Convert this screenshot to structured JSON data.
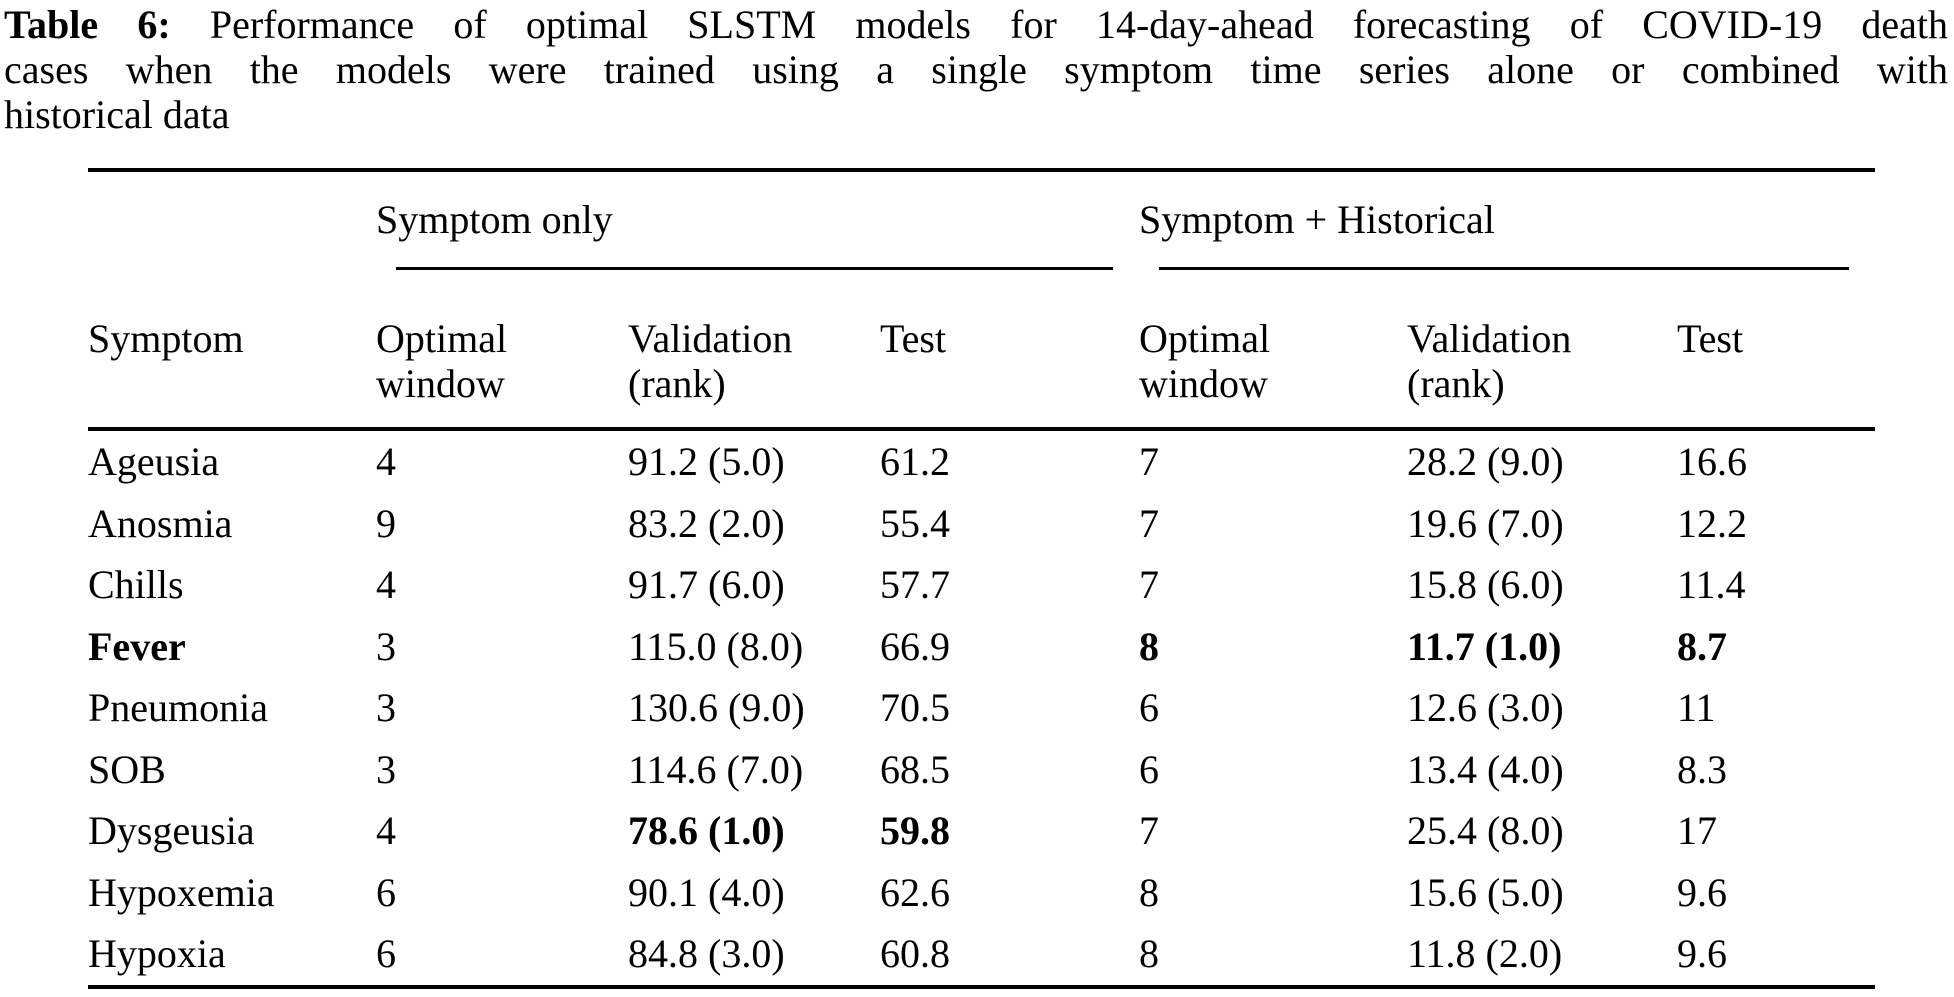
{
  "caption": {
    "label": "Table 6:",
    "line1_rest": "Performance of optimal SLSTM models for 14-day-ahead forecasting of COVID-19 death",
    "line2": "cases when the models were trained using a single symptom time series alone or combined with",
    "line3": "historical data"
  },
  "table": {
    "group_headers": {
      "symptom_only": "Symptom only",
      "symptom_historical": "Symptom + Historical"
    },
    "column_headers": {
      "symptom": "Symptom",
      "optimal_window": "Optimal window",
      "validation_rank": "Validation (rank)",
      "test": "Test"
    },
    "rows": [
      {
        "cells": [
          "Ageusia",
          "4",
          "91.2 (5.0)",
          "61.2",
          "7",
          "28.2 (9.0)",
          "16.6"
        ],
        "bold": [
          false,
          false,
          false,
          false,
          false,
          false,
          false
        ]
      },
      {
        "cells": [
          "Anosmia",
          "9",
          "83.2 (2.0)",
          "55.4",
          "7",
          "19.6 (7.0)",
          "12.2"
        ],
        "bold": [
          false,
          false,
          false,
          false,
          false,
          false,
          false
        ]
      },
      {
        "cells": [
          "Chills",
          "4",
          "91.7 (6.0)",
          "57.7",
          "7",
          "15.8 (6.0)",
          "11.4"
        ],
        "bold": [
          false,
          false,
          false,
          false,
          false,
          false,
          false
        ]
      },
      {
        "cells": [
          "Fever",
          "3",
          "115.0 (8.0)",
          "66.9",
          "8",
          "11.7 (1.0)",
          "8.7"
        ],
        "bold": [
          true,
          false,
          false,
          false,
          true,
          true,
          true
        ]
      },
      {
        "cells": [
          "Pneumonia",
          "3",
          "130.6 (9.0)",
          "70.5",
          "6",
          "12.6 (3.0)",
          "11"
        ],
        "bold": [
          false,
          false,
          false,
          false,
          false,
          false,
          false
        ]
      },
      {
        "cells": [
          "SOB",
          "3",
          "114.6 (7.0)",
          "68.5",
          "6",
          "13.4 (4.0)",
          "8.3"
        ],
        "bold": [
          false,
          false,
          false,
          false,
          false,
          false,
          false
        ]
      },
      {
        "cells": [
          "Dysgeusia",
          "4",
          "78.6 (1.0)",
          "59.8",
          "7",
          "25.4 (8.0)",
          "17"
        ],
        "bold": [
          false,
          false,
          true,
          true,
          false,
          false,
          false
        ]
      },
      {
        "cells": [
          "Hypoxemia",
          "6",
          "90.1 (4.0)",
          "62.6",
          "8",
          "15.6 (5.0)",
          "9.6"
        ],
        "bold": [
          false,
          false,
          false,
          false,
          false,
          false,
          false
        ]
      },
      {
        "cells": [
          "Hypoxia",
          "6",
          "84.8 (3.0)",
          "60.8",
          "8",
          "11.8 (2.0)",
          "9.6"
        ],
        "bold": [
          false,
          false,
          false,
          false,
          false,
          false,
          false
        ]
      }
    ]
  }
}
